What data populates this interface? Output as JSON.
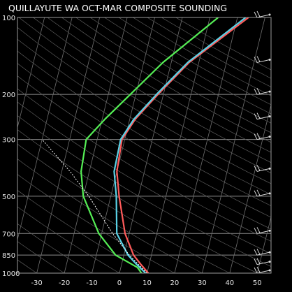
{
  "chart_data": {
    "type": "line",
    "title": "QUILLAYUTE WA  OCT-MAR COMPOSITE SOUNDING",
    "xlabel": "",
    "ylabel": "",
    "xlim": [
      -37,
      55
    ],
    "ylim": [
      1000,
      100
    ],
    "y_scale": "log",
    "pressure_levels": [
      100,
      200,
      300,
      500,
      700,
      850,
      1000
    ],
    "temperature_ticks": [
      -30,
      -20,
      -10,
      0,
      10,
      20,
      30,
      40,
      50
    ],
    "grid": true,
    "series": [
      {
        "color": "#ff5a5a",
        "style": "solid",
        "points": [
          {
            "p": 1000,
            "t": 10.5
          },
          {
            "p": 925,
            "t": 7.0
          },
          {
            "p": 850,
            "t": 3.5
          },
          {
            "p": 700,
            "t": -1.5
          },
          {
            "p": 500,
            "t": -7.0
          },
          {
            "p": 400,
            "t": -10.0
          },
          {
            "p": 300,
            "t": -11.0
          },
          {
            "p": 250,
            "t": -8.0
          },
          {
            "p": 200,
            "t": -2.0
          },
          {
            "p": 150,
            "t": 6.5
          },
          {
            "p": 100,
            "t": 24.0
          }
        ]
      },
      {
        "color": "#5ad2e6",
        "style": "solid",
        "points": [
          {
            "p": 1000,
            "t": 9.5
          },
          {
            "p": 925,
            "t": 5.5
          },
          {
            "p": 850,
            "t": 1.5
          },
          {
            "p": 700,
            "t": -4.5
          },
          {
            "p": 500,
            "t": -8.0
          },
          {
            "p": 400,
            "t": -11.0
          },
          {
            "p": 300,
            "t": -11.5
          },
          {
            "p": 250,
            "t": -8.5
          },
          {
            "p": 200,
            "t": -2.5
          },
          {
            "p": 150,
            "t": 6.0
          },
          {
            "p": 100,
            "t": 23.0
          }
        ]
      },
      {
        "color": "#55ee55",
        "style": "solid",
        "points": [
          {
            "p": 1000,
            "t": 8.0
          },
          {
            "p": 950,
            "t": 6.0
          },
          {
            "p": 850,
            "t": -3.0
          },
          {
            "p": 700,
            "t": -11.0
          },
          {
            "p": 500,
            "t": -20.0
          },
          {
            "p": 400,
            "t": -23.0
          },
          {
            "p": 300,
            "t": -24.0
          },
          {
            "p": 250,
            "t": -19.0
          },
          {
            "p": 200,
            "t": -12.0
          },
          {
            "p": 150,
            "t": -3.0
          },
          {
            "p": 100,
            "t": 13.0
          }
        ]
      },
      {
        "color": "#ffffff",
        "style": "dotted",
        "points": [
          {
            "p": 1000,
            "t": 10.0
          },
          {
            "p": 850,
            "t": 2.0
          },
          {
            "p": 700,
            "t": -6.0
          },
          {
            "p": 500,
            "t": -18.0
          },
          {
            "p": 400,
            "t": -27.0
          },
          {
            "p": 300,
            "t": -40.0
          }
        ]
      }
    ]
  }
}
